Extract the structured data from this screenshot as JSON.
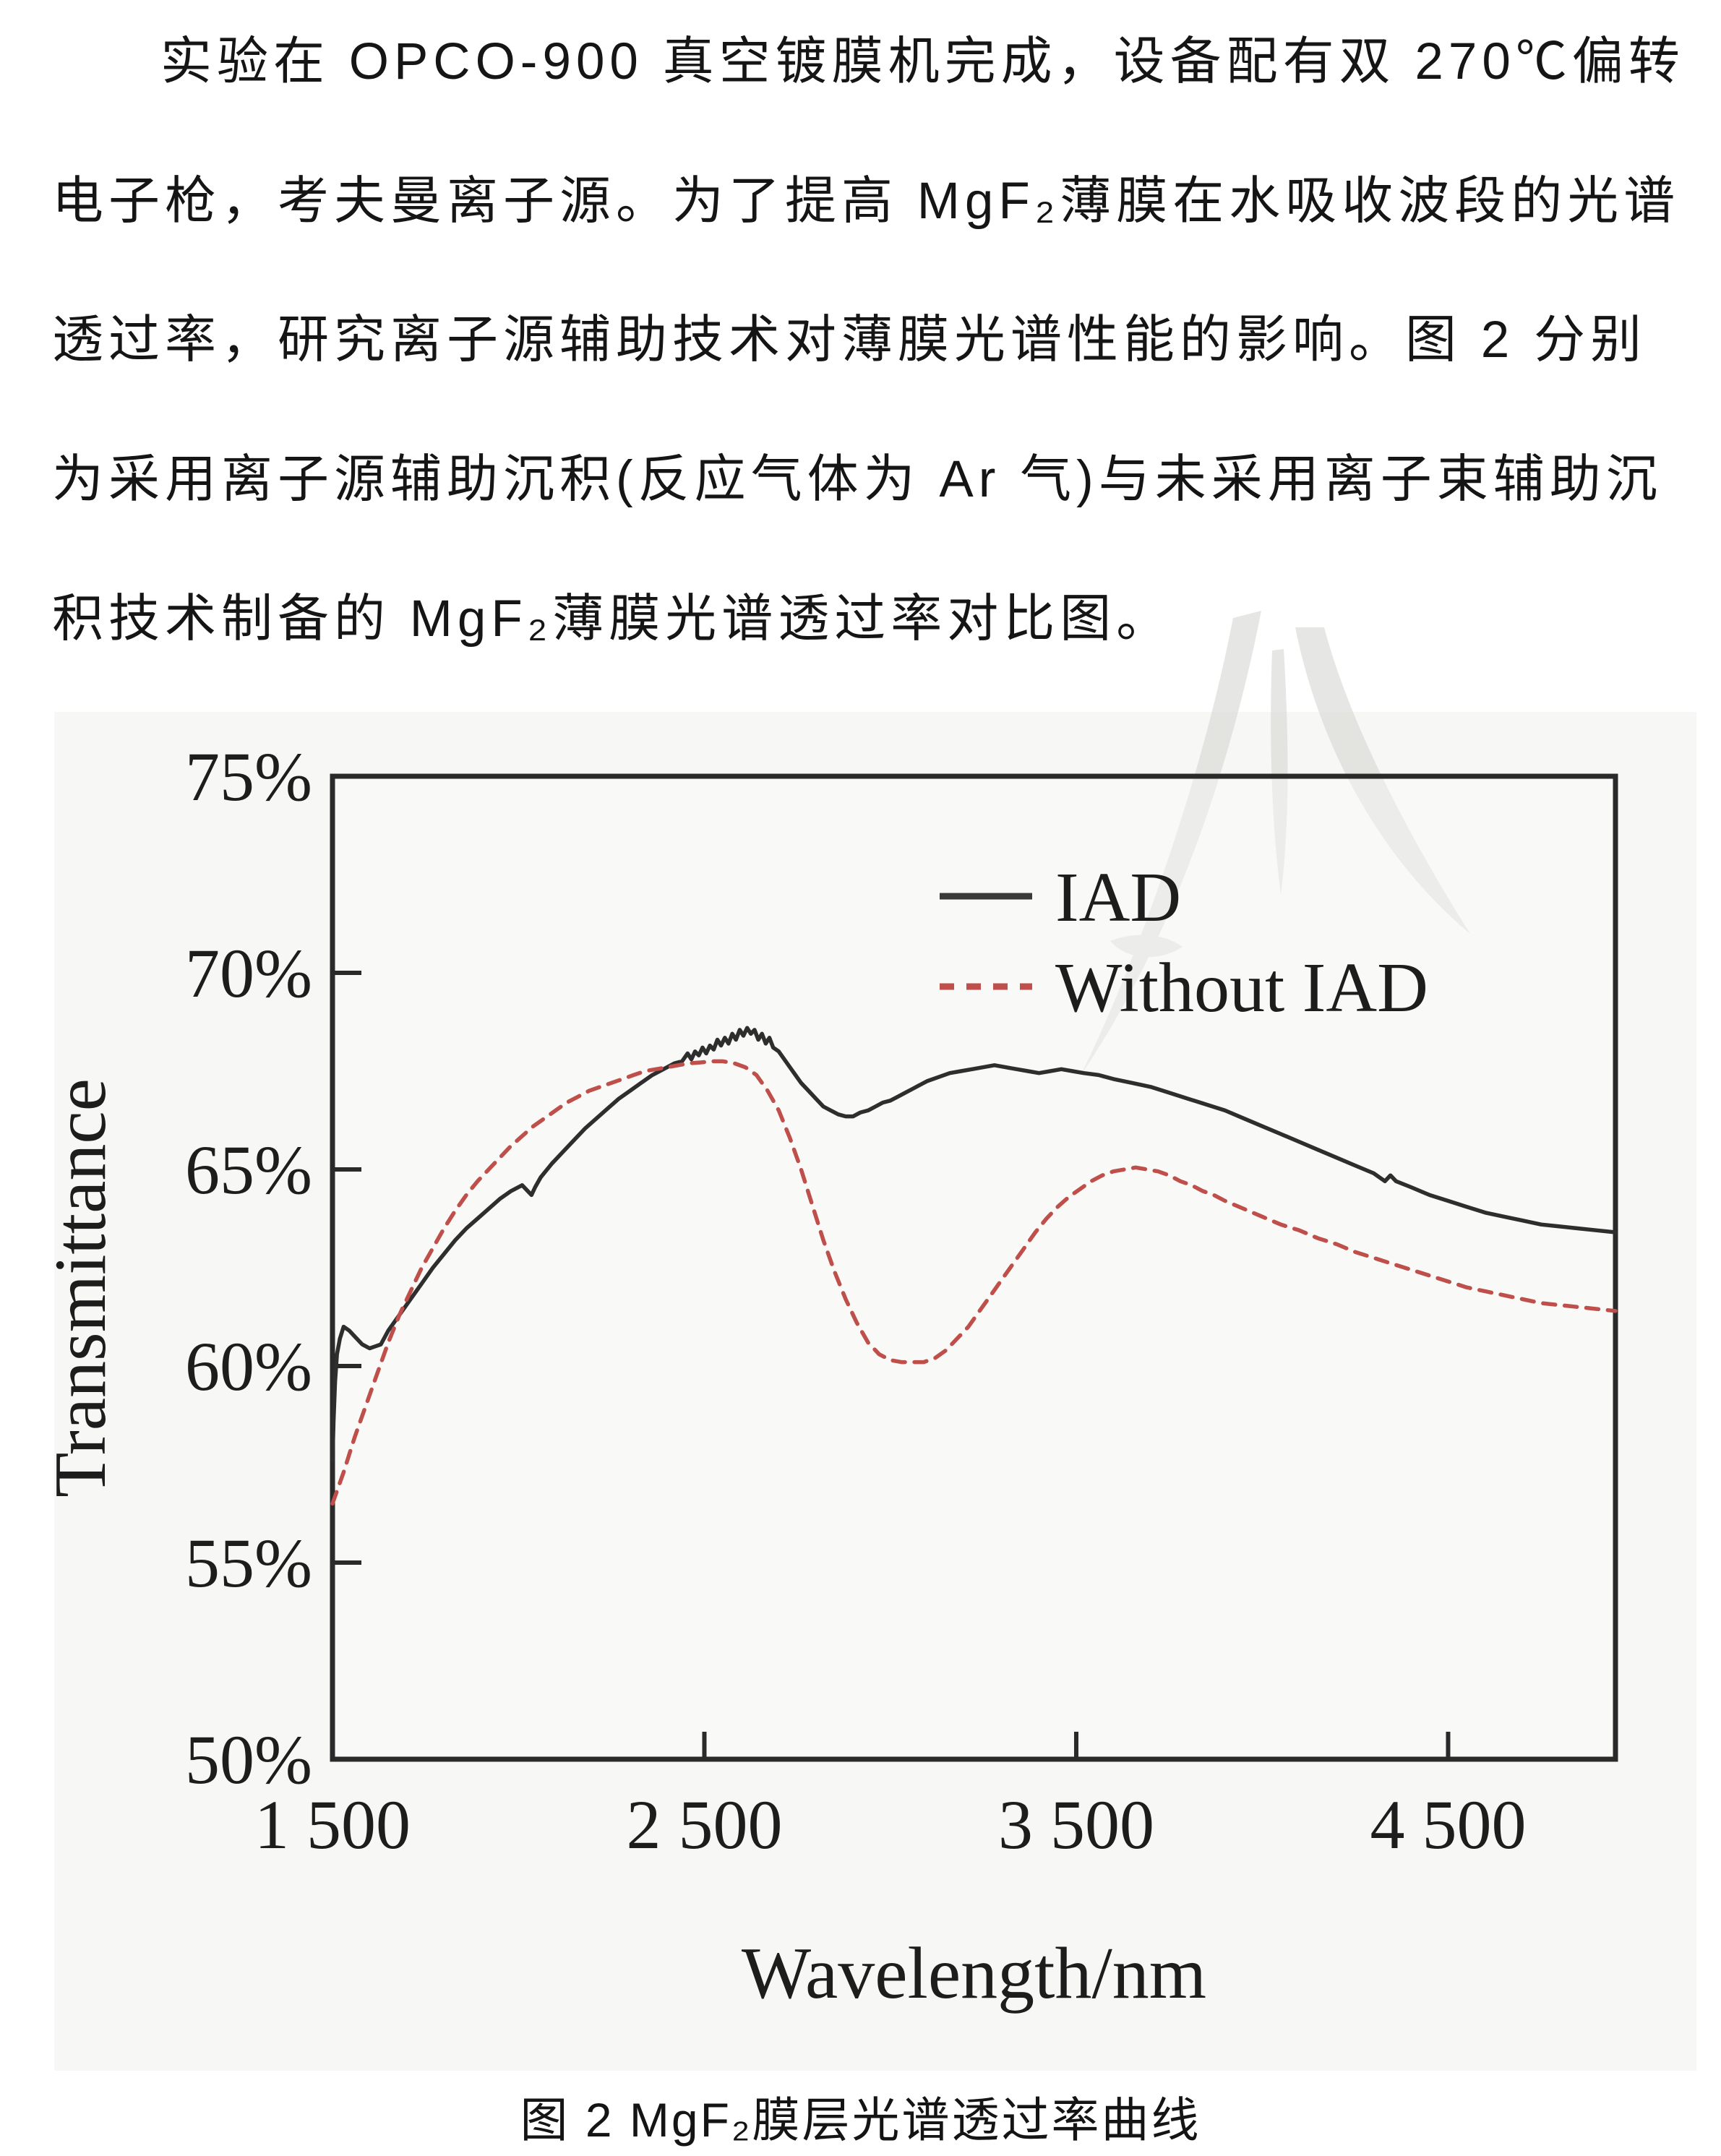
{
  "paragraph": {
    "lines": [
      "实验在 OPCO-900 真空镀膜机完成，设备配有双 270℃偏转",
      "电子枪，考夫曼离子源。为了提高 MgF₂薄膜在水吸收波段的光谱",
      "透过率，研究离子源辅助技术对薄膜光谱性能的影响。图 2 分别",
      "为采用离子源辅助沉积(反应气体为 Ar 气)与未采用离子束辅助沉",
      "积技术制备的 MgF₂薄膜光谱透过率对比图。"
    ]
  },
  "figure": {
    "caption": "图 2 MgF₂膜层光谱透过率曲线",
    "watermark_color": "#d9d9d6"
  },
  "chart_data": {
    "type": "line",
    "title": "",
    "xlabel": "Wavelength/nm",
    "ylabel": "Transmittance",
    "xlim": [
      1500,
      4950
    ],
    "ylim": [
      50,
      75
    ],
    "x_ticks": [
      1500,
      2500,
      3500,
      4500
    ],
    "x_tick_labels": [
      "1 500",
      "2 500",
      "3 500",
      "4 500"
    ],
    "y_ticks": [
      50,
      55,
      60,
      65,
      70,
      75
    ],
    "y_tick_labels": [
      "50%",
      "55%",
      "60%",
      "65%",
      "70%",
      "75%"
    ],
    "grid": false,
    "legend_position": "top-right-inside",
    "axis_color": "#2a2a2a",
    "series": [
      {
        "name": "IAD",
        "color": "#2e2e2e",
        "style": "solid",
        "points": [
          [
            1500,
            57.6
          ],
          [
            1503,
            58.6
          ],
          [
            1507,
            59.6
          ],
          [
            1512,
            60.3
          ],
          [
            1520,
            60.7
          ],
          [
            1530,
            61.0
          ],
          [
            1545,
            60.9
          ],
          [
            1560,
            60.75
          ],
          [
            1580,
            60.55
          ],
          [
            1600,
            60.45
          ],
          [
            1615,
            60.5
          ],
          [
            1630,
            60.55
          ],
          [
            1650,
            60.9
          ],
          [
            1680,
            61.3
          ],
          [
            1710,
            61.7
          ],
          [
            1740,
            62.1
          ],
          [
            1770,
            62.5
          ],
          [
            1800,
            62.85
          ],
          [
            1830,
            63.2
          ],
          [
            1860,
            63.5
          ],
          [
            1890,
            63.75
          ],
          [
            1920,
            64.0
          ],
          [
            1950,
            64.25
          ],
          [
            1980,
            64.45
          ],
          [
            2010,
            64.6
          ],
          [
            2035,
            64.35
          ],
          [
            2045,
            64.55
          ],
          [
            2060,
            64.8
          ],
          [
            2090,
            65.15
          ],
          [
            2120,
            65.45
          ],
          [
            2150,
            65.75
          ],
          [
            2180,
            66.05
          ],
          [
            2210,
            66.3
          ],
          [
            2240,
            66.55
          ],
          [
            2270,
            66.8
          ],
          [
            2300,
            67.0
          ],
          [
            2330,
            67.2
          ],
          [
            2360,
            67.4
          ],
          [
            2390,
            67.55
          ],
          [
            2420,
            67.7
          ],
          [
            2440,
            67.75
          ],
          [
            2455,
            67.95
          ],
          [
            2465,
            67.8
          ],
          [
            2475,
            68.0
          ],
          [
            2485,
            67.9
          ],
          [
            2495,
            68.1
          ],
          [
            2505,
            67.95
          ],
          [
            2515,
            68.15
          ],
          [
            2525,
            68.05
          ],
          [
            2535,
            68.3
          ],
          [
            2545,
            68.15
          ],
          [
            2555,
            68.35
          ],
          [
            2565,
            68.2
          ],
          [
            2575,
            68.45
          ],
          [
            2585,
            68.3
          ],
          [
            2595,
            68.55
          ],
          [
            2605,
            68.4
          ],
          [
            2615,
            68.6
          ],
          [
            2625,
            68.45
          ],
          [
            2635,
            68.55
          ],
          [
            2645,
            68.3
          ],
          [
            2655,
            68.45
          ],
          [
            2665,
            68.2
          ],
          [
            2675,
            68.35
          ],
          [
            2685,
            68.1
          ],
          [
            2700,
            68.0
          ],
          [
            2715,
            67.8
          ],
          [
            2730,
            67.6
          ],
          [
            2745,
            67.4
          ],
          [
            2760,
            67.2
          ],
          [
            2780,
            67.0
          ],
          [
            2800,
            66.8
          ],
          [
            2820,
            66.6
          ],
          [
            2840,
            66.5
          ],
          [
            2860,
            66.4
          ],
          [
            2880,
            66.35
          ],
          [
            2900,
            66.35
          ],
          [
            2920,
            66.45
          ],
          [
            2940,
            66.5
          ],
          [
            2960,
            66.6
          ],
          [
            2980,
            66.7
          ],
          [
            3000,
            66.75
          ],
          [
            3020,
            66.85
          ],
          [
            3040,
            66.95
          ],
          [
            3060,
            67.05
          ],
          [
            3080,
            67.15
          ],
          [
            3100,
            67.25
          ],
          [
            3130,
            67.35
          ],
          [
            3160,
            67.45
          ],
          [
            3190,
            67.5
          ],
          [
            3220,
            67.55
          ],
          [
            3250,
            67.6
          ],
          [
            3280,
            67.65
          ],
          [
            3310,
            67.6
          ],
          [
            3340,
            67.55
          ],
          [
            3370,
            67.5
          ],
          [
            3400,
            67.45
          ],
          [
            3430,
            67.5
          ],
          [
            3460,
            67.55
          ],
          [
            3490,
            67.5
          ],
          [
            3520,
            67.45
          ],
          [
            3560,
            67.4
          ],
          [
            3600,
            67.3
          ],
          [
            3650,
            67.2
          ],
          [
            3700,
            67.1
          ],
          [
            3750,
            66.95
          ],
          [
            3800,
            66.8
          ],
          [
            3850,
            66.65
          ],
          [
            3900,
            66.5
          ],
          [
            3950,
            66.3
          ],
          [
            4000,
            66.1
          ],
          [
            4050,
            65.9
          ],
          [
            4100,
            65.7
          ],
          [
            4150,
            65.5
          ],
          [
            4200,
            65.3
          ],
          [
            4250,
            65.1
          ],
          [
            4300,
            64.9
          ],
          [
            4330,
            64.7
          ],
          [
            4345,
            64.85
          ],
          [
            4360,
            64.7
          ],
          [
            4400,
            64.55
          ],
          [
            4450,
            64.35
          ],
          [
            4500,
            64.2
          ],
          [
            4550,
            64.05
          ],
          [
            4600,
            63.9
          ],
          [
            4650,
            63.8
          ],
          [
            4700,
            63.7
          ],
          [
            4750,
            63.6
          ],
          [
            4800,
            63.55
          ],
          [
            4850,
            63.5
          ],
          [
            4900,
            63.45
          ],
          [
            4950,
            63.4
          ]
        ]
      },
      {
        "name": "Without IAD",
        "color": "#bf4f4a",
        "style": "dashed",
        "points": [
          [
            1500,
            56.5
          ],
          [
            1530,
            57.3
          ],
          [
            1560,
            58.2
          ],
          [
            1590,
            59.0
          ],
          [
            1620,
            59.8
          ],
          [
            1650,
            60.6
          ],
          [
            1680,
            61.3
          ],
          [
            1710,
            61.9
          ],
          [
            1740,
            62.5
          ],
          [
            1770,
            63.0
          ],
          [
            1800,
            63.5
          ],
          [
            1830,
            63.95
          ],
          [
            1860,
            64.35
          ],
          [
            1890,
            64.7
          ],
          [
            1920,
            65.0
          ],
          [
            1950,
            65.3
          ],
          [
            1980,
            65.6
          ],
          [
            2010,
            65.85
          ],
          [
            2040,
            66.1
          ],
          [
            2070,
            66.3
          ],
          [
            2100,
            66.5
          ],
          [
            2130,
            66.7
          ],
          [
            2160,
            66.85
          ],
          [
            2190,
            67.0
          ],
          [
            2220,
            67.1
          ],
          [
            2250,
            67.2
          ],
          [
            2280,
            67.3
          ],
          [
            2310,
            67.4
          ],
          [
            2340,
            67.5
          ],
          [
            2370,
            67.55
          ],
          [
            2400,
            67.6
          ],
          [
            2430,
            67.65
          ],
          [
            2460,
            67.7
          ],
          [
            2490,
            67.72
          ],
          [
            2520,
            67.75
          ],
          [
            2550,
            67.75
          ],
          [
            2580,
            67.7
          ],
          [
            2610,
            67.6
          ],
          [
            2640,
            67.4
          ],
          [
            2670,
            67.0
          ],
          [
            2700,
            66.5
          ],
          [
            2730,
            65.8
          ],
          [
            2760,
            65.0
          ],
          [
            2790,
            64.1
          ],
          [
            2820,
            63.2
          ],
          [
            2850,
            62.4
          ],
          [
            2880,
            61.7
          ],
          [
            2910,
            61.1
          ],
          [
            2940,
            60.6
          ],
          [
            2970,
            60.3
          ],
          [
            3000,
            60.15
          ],
          [
            3030,
            60.1
          ],
          [
            3060,
            60.1
          ],
          [
            3090,
            60.1
          ],
          [
            3120,
            60.2
          ],
          [
            3150,
            60.4
          ],
          [
            3180,
            60.7
          ],
          [
            3210,
            61.0
          ],
          [
            3240,
            61.4
          ],
          [
            3270,
            61.8
          ],
          [
            3300,
            62.2
          ],
          [
            3330,
            62.6
          ],
          [
            3360,
            63.0
          ],
          [
            3390,
            63.4
          ],
          [
            3420,
            63.75
          ],
          [
            3450,
            64.05
          ],
          [
            3480,
            64.3
          ],
          [
            3510,
            64.5
          ],
          [
            3540,
            64.7
          ],
          [
            3570,
            64.85
          ],
          [
            3600,
            64.95
          ],
          [
            3630,
            65.0
          ],
          [
            3660,
            65.05
          ],
          [
            3690,
            65.0
          ],
          [
            3720,
            64.95
          ],
          [
            3750,
            64.85
          ],
          [
            3780,
            64.7
          ],
          [
            3810,
            64.6
          ],
          [
            3840,
            64.45
          ],
          [
            3870,
            64.35
          ],
          [
            3900,
            64.2
          ],
          [
            3950,
            64.0
          ],
          [
            4000,
            63.8
          ],
          [
            4050,
            63.6
          ],
          [
            4100,
            63.45
          ],
          [
            4150,
            63.25
          ],
          [
            4200,
            63.1
          ],
          [
            4250,
            62.9
          ],
          [
            4300,
            62.75
          ],
          [
            4350,
            62.6
          ],
          [
            4400,
            62.45
          ],
          [
            4450,
            62.3
          ],
          [
            4500,
            62.15
          ],
          [
            4550,
            62.0
          ],
          [
            4600,
            61.9
          ],
          [
            4650,
            61.8
          ],
          [
            4700,
            61.7
          ],
          [
            4750,
            61.6
          ],
          [
            4800,
            61.55
          ],
          [
            4850,
            61.5
          ],
          [
            4900,
            61.45
          ],
          [
            4950,
            61.4
          ]
        ]
      }
    ]
  }
}
